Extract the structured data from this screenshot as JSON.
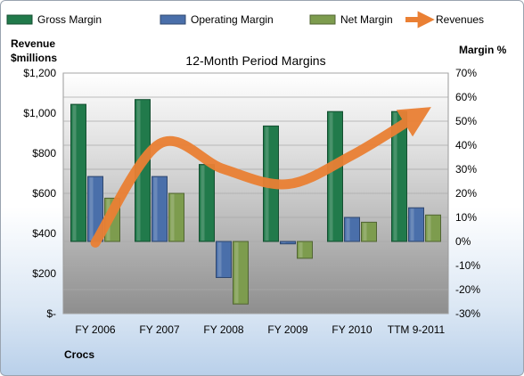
{
  "chart_data": {
    "type": "bar",
    "title": "12-Month Period Margins",
    "company": "Crocs",
    "left_axis_title_line1": "Revenue",
    "left_axis_title_line2": "$millions",
    "right_axis_title": "Margin %",
    "categories": [
      "FY 2006",
      "FY 2007",
      "FY 2008",
      "FY 2009",
      "FY 2010",
      "TTM 9-2011"
    ],
    "series": [
      {
        "name": "Gross Margin",
        "axis": "right",
        "type": "bar",
        "color": "#217a4b",
        "values": [
          57,
          59,
          32,
          48,
          54,
          54
        ]
      },
      {
        "name": "Operating Margin",
        "axis": "right",
        "type": "bar",
        "color": "#4a6faa",
        "values": [
          27,
          27,
          -15,
          -1,
          10,
          14
        ]
      },
      {
        "name": "Net Margin",
        "axis": "right",
        "type": "bar",
        "color": "#7d9c4e",
        "values": [
          18,
          20,
          -26,
          -7,
          8,
          11
        ]
      },
      {
        "name": "Revenues",
        "axis": "left",
        "type": "line",
        "color": "#ea8034",
        "values": [
          354,
          847,
          721,
          646,
          790,
          985
        ]
      }
    ],
    "left_axis": {
      "min": 0,
      "max": 1200,
      "ticks": [
        "$-",
        "$200",
        "$400",
        "$600",
        "$800",
        "$1,000",
        "$1,200"
      ],
      "tick_values": [
        0,
        200,
        400,
        600,
        800,
        1000,
        1200
      ]
    },
    "right_axis": {
      "min": -30,
      "max": 70,
      "ticks": [
        "-30%",
        "-20%",
        "-10%",
        "0%",
        "10%",
        "20%",
        "30%",
        "40%",
        "50%",
        "60%",
        "70%"
      ],
      "tick_values": [
        -30,
        -20,
        -10,
        0,
        10,
        20,
        30,
        40,
        50,
        60,
        70
      ]
    },
    "grid": true,
    "legend_position": "top"
  }
}
